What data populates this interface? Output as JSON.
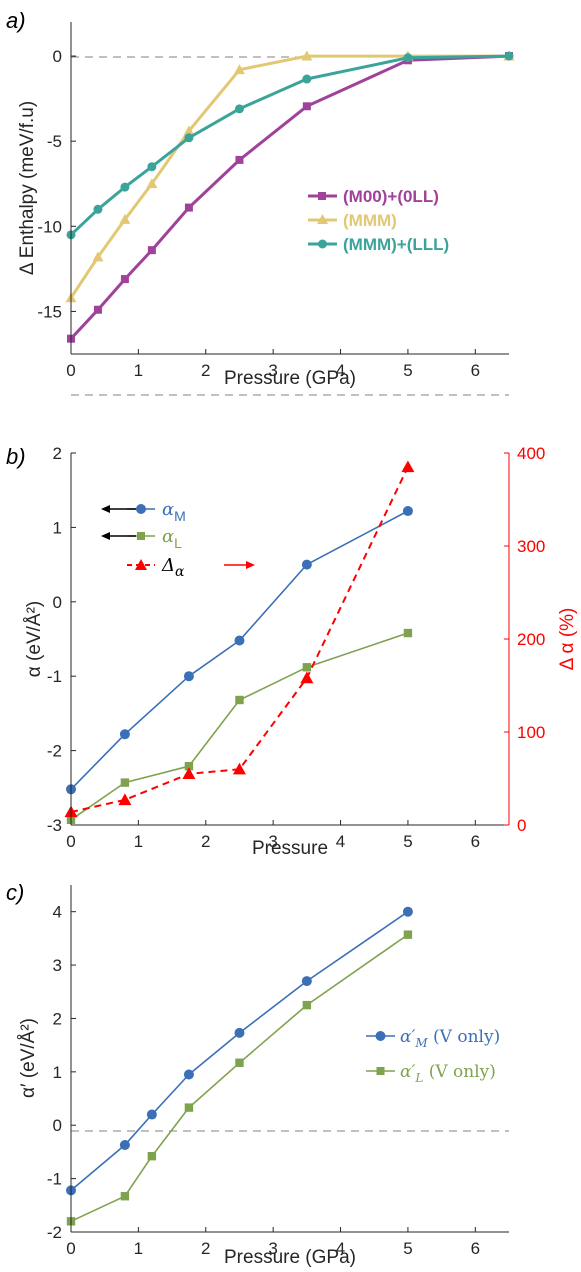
{
  "chart_data": [
    {
      "panel": "a)",
      "type": "line",
      "xlabel": "Pressure (GPa)",
      "ylabel": "Δ Enthalpy (meV/f.u)",
      "xlim": [
        0,
        6.5
      ],
      "ylim": [
        -17.5,
        2
      ],
      "xticks": [
        "0",
        "1",
        "2",
        "3",
        "4",
        "5",
        "6"
      ],
      "yticks": [
        "-15",
        "-10",
        "-5",
        "0"
      ],
      "zero_line": true,
      "legend_position": "center-right",
      "series": [
        {
          "name": "(M00)+(0LL)",
          "color": "#a0429a",
          "marker": "square",
          "x": [
            0,
            0.4,
            0.8,
            1.2,
            1.75,
            2.5,
            3.5,
            5,
            6.5
          ],
          "y": [
            -16.6,
            -14.9,
            -13.1,
            -11.4,
            -8.9,
            -6.1,
            -2.95,
            -0.25,
            0
          ]
        },
        {
          "name": "(MMM)",
          "color": "#e2c873",
          "marker": "triangle",
          "x": [
            0,
            0.4,
            0.8,
            1.2,
            1.75,
            2.5,
            3.5,
            5,
            6.5
          ],
          "y": [
            -14.2,
            -11.8,
            -9.6,
            -7.5,
            -4.4,
            -0.8,
            0,
            0,
            0
          ]
        },
        {
          "name": "(MMM)+(LLL)",
          "color": "#3aa39a",
          "marker": "circle",
          "x": [
            0,
            0.4,
            0.8,
            1.2,
            1.75,
            2.5,
            3.5,
            5,
            6.5
          ],
          "y": [
            -10.5,
            -9.0,
            -7.7,
            -6.5,
            -4.8,
            -3.1,
            -1.35,
            -0.1,
            0
          ]
        }
      ]
    },
    {
      "panel": "b)",
      "type": "line",
      "xlabel": "Pressure",
      "ylabel": "α (eV/Å²)",
      "ylabel_right": "Δ α (%)",
      "xlim": [
        0,
        6.5
      ],
      "ylim": [
        -3,
        2
      ],
      "ylim_right": [
        0,
        400
      ],
      "xticks": [
        "0",
        "1",
        "2",
        "3",
        "4",
        "5",
        "6"
      ],
      "yticks": [
        "-3",
        "-2",
        "-1",
        "0",
        "1",
        "2"
      ],
      "yticks_right": [
        "0",
        "100",
        "200",
        "300",
        "400"
      ],
      "zero_line": true,
      "legend_position": "top-left",
      "series": [
        {
          "name": "αM",
          "legend_base": "α",
          "legend_sub": "M",
          "color": "#3b6fb6",
          "marker": "circle",
          "axis": "left",
          "x": [
            0,
            0.8,
            1.75,
            2.5,
            3.5,
            5
          ],
          "y": [
            -2.52,
            -1.78,
            -1.0,
            -0.52,
            0.5,
            1.22
          ]
        },
        {
          "name": "αL",
          "legend_base": "α",
          "legend_sub": "L",
          "color": "#7fa24f",
          "marker": "square",
          "axis": "left",
          "x": [
            0,
            0.8,
            1.75,
            2.5,
            3.5,
            5
          ],
          "y": [
            -2.93,
            -2.43,
            -2.21,
            -1.32,
            -0.88,
            -0.42
          ]
        },
        {
          "name": "Δα",
          "legend_base": "Δ",
          "legend_sub": "α",
          "color": "#ff0000",
          "marker": "triangle",
          "dashed": true,
          "axis": "right",
          "x": [
            0,
            0.8,
            1.75,
            2.5,
            3.5,
            5
          ],
          "y": [
            14,
            27,
            55,
            60,
            158,
            385
          ]
        }
      ]
    },
    {
      "panel": "c)",
      "type": "line",
      "xlabel": "Pressure (GPa)",
      "ylabel": "α′ (eV/Å²)",
      "xlim": [
        0,
        6.5
      ],
      "ylim": [
        -2,
        4.5
      ],
      "xticks": [
        "0",
        "1",
        "2",
        "3",
        "4",
        "5",
        "6"
      ],
      "yticks": [
        "-2",
        "-1",
        "0",
        "1",
        "2",
        "3",
        "4"
      ],
      "zero_line": true,
      "legend_position": "center-right",
      "series": [
        {
          "name": "α′M (V only)",
          "legend_base": "α′",
          "legend_sub": "M",
          "legend_suffix": " (V only)",
          "color": "#3b6fb6",
          "marker": "circle",
          "x": [
            0,
            0.8,
            1.2,
            1.75,
            2.5,
            3.5,
            5
          ],
          "y": [
            -1.22,
            -0.37,
            0.2,
            0.95,
            1.73,
            2.7,
            4.0
          ]
        },
        {
          "name": "α′L (V only)",
          "legend_base": "α′",
          "legend_sub": "L",
          "legend_suffix": " (V only)",
          "color": "#7fa24f",
          "marker": "square",
          "x": [
            0,
            0.8,
            1.2,
            1.75,
            2.5,
            3.5,
            5
          ],
          "y": [
            -1.8,
            -1.33,
            -0.58,
            0.33,
            1.17,
            2.25,
            3.57
          ]
        }
      ]
    }
  ]
}
